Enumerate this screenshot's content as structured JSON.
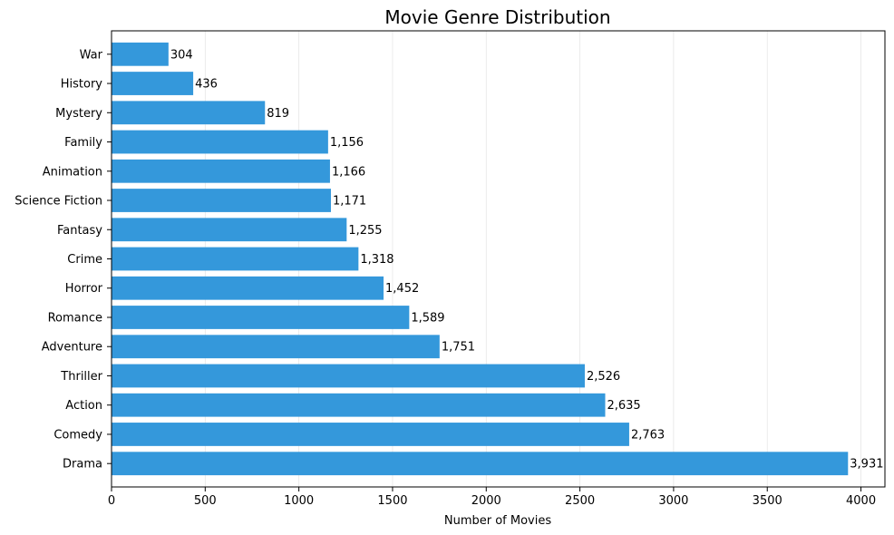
{
  "chart_data": {
    "type": "bar",
    "orientation": "horizontal",
    "title": "Movie Genre Distribution",
    "xlabel": "Number of Movies",
    "ylabel": "",
    "categories": [
      "Drama",
      "Comedy",
      "Action",
      "Thriller",
      "Adventure",
      "Romance",
      "Horror",
      "Crime",
      "Fantasy",
      "Science Fiction",
      "Animation",
      "Family",
      "Mystery",
      "History",
      "War"
    ],
    "values": [
      3931,
      2763,
      2635,
      2526,
      1751,
      1589,
      1452,
      1318,
      1255,
      1171,
      1166,
      1156,
      819,
      436,
      304
    ],
    "data_labels": [
      "3,931",
      "2,763",
      "2,635",
      "2,526",
      "1,751",
      "1,589",
      "1,452",
      "1,318",
      "1,255",
      "1,171",
      "1,166",
      "1,156",
      "819",
      "436",
      "304"
    ],
    "xticks": [
      0,
      500,
      1000,
      1500,
      2000,
      2500,
      3000,
      3500,
      4000
    ],
    "xlim": [
      0,
      4128
    ],
    "grid": "vertical",
    "legend": "none",
    "bar_color": "#3498db"
  }
}
